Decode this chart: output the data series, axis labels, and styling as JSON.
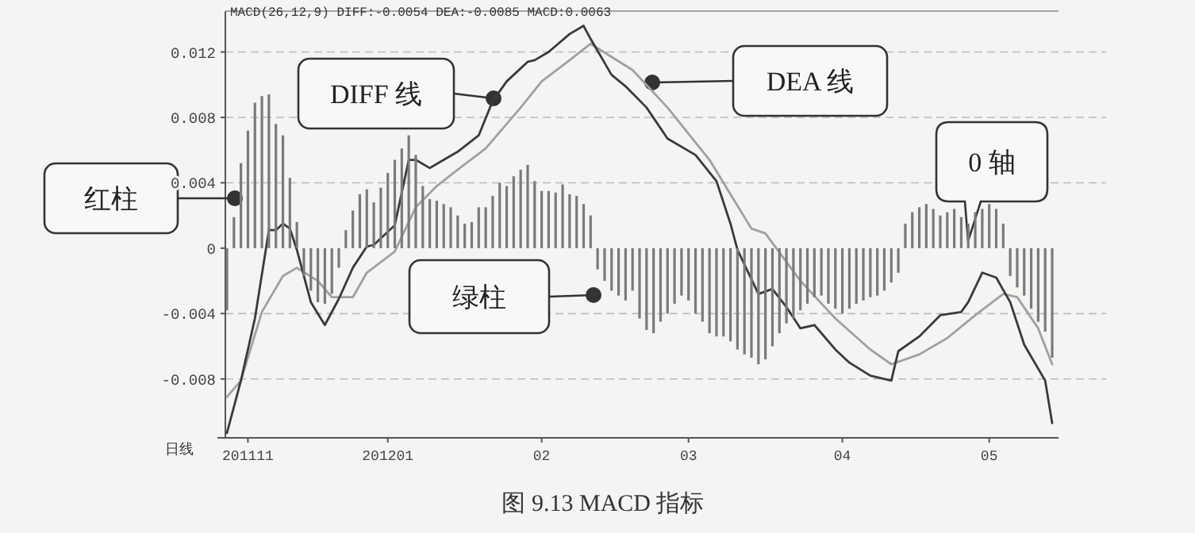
{
  "chart_data": {
    "type": "bar",
    "title": "MACD(26,12,9) DIFF:-0.0054 DEA:-0.0085 MACD:0.0063",
    "ylim": [
      -0.0116,
      0.0145
    ],
    "yticks": [
      {
        "value": -0.008,
        "label": "-0.008"
      },
      {
        "value": -0.004,
        "label": "-0.004"
      },
      0,
      0.004,
      0.008,
      0.012
    ],
    "grid": "y",
    "line_style": "solid",
    "categories": [
      null,
      null,
      null,
      "201111",
      null,
      null,
      null,
      null,
      null,
      null,
      null,
      null,
      null,
      null,
      null,
      null,
      null,
      null,
      null,
      null,
      null,
      null,
      null,
      "201201",
      null,
      null,
      null,
      null,
      null,
      null,
      null,
      null,
      null,
      null,
      null,
      null,
      null,
      null,
      null,
      null,
      null,
      null,
      null,
      null,
      null,
      "02",
      null,
      null,
      null,
      null,
      null,
      null,
      null,
      null,
      null,
      null,
      null,
      null,
      null,
      null,
      null,
      null,
      null,
      null,
      null,
      null,
      "03",
      null,
      null,
      null,
      null,
      null,
      null,
      null,
      null,
      null,
      null,
      null,
      null,
      null,
      null,
      null,
      null,
      null,
      null,
      null,
      null,
      null,
      "04",
      null,
      null,
      null,
      null,
      null,
      null,
      null,
      null,
      null,
      null,
      null,
      null,
      null,
      null,
      null,
      null,
      null,
      null,
      null,
      null,
      "05",
      null,
      null,
      null,
      null,
      null,
      null,
      null,
      null,
      null
    ],
    "series": [
      {
        "color": "#7a7a7a",
        "values": [
          -0.0038,
          0.0019,
          0.0052,
          0.0072,
          0.0089,
          0.0093,
          0.0094,
          0.0076,
          0.0069,
          0.0043,
          0.0016,
          -0.0017,
          -0.0026,
          -0.0033,
          -0.0034,
          -0.0028,
          -0.0012,
          0.0011,
          0.0023,
          0.0033,
          0.0036,
          0.0028,
          0.0037,
          0.0046,
          0.0054,
          0.0061,
          0.0069,
          0.0057,
          0.0038,
          0.003,
          0.0029,
          0.0027,
          0.0025,
          0.002,
          0.0015,
          0.0016,
          0.0025,
          0.0025,
          0.0032,
          0.004,
          0.0038,
          0.0044,
          0.0048,
          0.0051,
          0.0041,
          0.0035,
          0.0035,
          0.0034,
          0.0039,
          0.0033,
          0.0032,
          0.0027,
          0.002,
          -0.0013,
          -0.002,
          -0.0026,
          -0.0029,
          -0.0032,
          -0.0026,
          -0.0043,
          -0.005,
          -0.0052,
          -0.0045,
          -0.004,
          -0.0034,
          -0.0029,
          -0.0032,
          -0.004,
          -0.0045,
          -0.0052,
          -0.0054,
          -0.0054,
          -0.0057,
          -0.0062,
          -0.0065,
          -0.0067,
          -0.0071,
          -0.0068,
          -0.006,
          -0.0052,
          -0.0046,
          -0.0043,
          -0.0038,
          -0.0034,
          -0.003,
          -0.0029,
          -0.0034,
          -0.0037,
          -0.004,
          -0.0037,
          -0.0034,
          -0.0032,
          -0.003,
          -0.0029,
          -0.0026,
          -0.0021,
          -0.0015,
          0.0015,
          0.0022,
          0.0025,
          0.0027,
          0.0024,
          0.002,
          0.0022,
          0.0024,
          0.0019,
          0.0015,
          0.0022,
          0.0024,
          0.0027,
          0.0024,
          0.0015,
          -0.0017,
          -0.0024,
          -0.0029,
          -0.0037,
          -0.0045,
          -0.0051,
          -0.0067
        ]
      },
      {
        "type": "line",
        "color": "#3a3a3a",
        "values": [
          -0.0113,
          null,
          -0.0081,
          null,
          -0.0043,
          null,
          0.0011,
          0.0011,
          0.0015,
          0.0012,
          -0.0001,
          null,
          -0.0033,
          null,
          -0.0047,
          null,
          -0.0031,
          null,
          -0.0012,
          null,
          0.0001,
          0.0002,
          null,
          null,
          0.0014,
          null,
          0.0054,
          0.0054,
          null,
          0.0049,
          null,
          0.0054,
          null,
          0.0059,
          null,
          null,
          0.0069,
          null,
          0.009,
          null,
          0.0102,
          null,
          null,
          0.0114,
          0.0115,
          null,
          0.012,
          null,
          null,
          0.0131,
          null,
          0.0136,
          0.0128,
          null,
          null,
          0.0106,
          null,
          0.0099,
          null,
          null,
          0.0086,
          null,
          null,
          0.0067,
          null,
          null,
          null,
          0.0057,
          null,
          null,
          0.0041,
          null,
          0.0015,
          -0.0001,
          null,
          null,
          -0.0028,
          null,
          -0.0025,
          null,
          -0.0036,
          null,
          -0.0049,
          null,
          -0.0047,
          null,
          null,
          -0.0062,
          null,
          -0.007,
          null,
          null,
          -0.0078,
          null,
          null,
          -0.0081,
          -0.0063,
          null,
          null,
          -0.0054,
          null,
          null,
          -0.0041,
          null,
          null,
          -0.0039,
          -0.0033,
          null,
          -0.0015,
          null,
          -0.0018,
          null,
          -0.0033,
          null,
          -0.0059,
          null,
          null,
          -0.0081,
          -0.0107
        ]
      },
      {
        "type": "line",
        "color": "#a0a0a0",
        "values": [
          -0.0091,
          null,
          -0.0081,
          null,
          null,
          -0.0039,
          null,
          null,
          -0.0017,
          null,
          -0.0012,
          null,
          null,
          -0.002,
          null,
          -0.003,
          null,
          null,
          -0.003,
          null,
          -0.0015,
          null,
          null,
          null,
          -0.0002,
          null,
          null,
          0.0025,
          null,
          null,
          0.0038,
          null,
          null,
          0.0048,
          null,
          null,
          null,
          0.0061,
          null,
          null,
          null,
          null,
          0.0086,
          null,
          null,
          0.0102,
          null,
          null,
          null,
          0.0115,
          null,
          null,
          0.0125,
          null,
          null,
          0.0117,
          null,
          null,
          0.0109,
          null,
          null,
          null,
          null,
          0.0086,
          null,
          null,
          null,
          null,
          null,
          0.0054,
          null,
          null,
          null,
          null,
          null,
          0.0012,
          null,
          0.0009,
          null,
          null,
          null,
          null,
          -0.002,
          null,
          null,
          null,
          null,
          -0.0043,
          null,
          null,
          null,
          null,
          -0.0062,
          null,
          null,
          -0.0071,
          null,
          null,
          null,
          -0.0065,
          null,
          null,
          null,
          -0.0055,
          null,
          null,
          null,
          -0.0041,
          null,
          null,
          null,
          -0.0028,
          null,
          -0.003,
          null,
          null,
          -0.0049,
          null,
          -0.0071
        ]
      }
    ],
    "annotations": [
      "红柱",
      "DIFF 线",
      "DEA 线",
      "绿柱",
      "0 轴",
      "日线",
      "图 9.13    MACD 指标"
    ]
  }
}
